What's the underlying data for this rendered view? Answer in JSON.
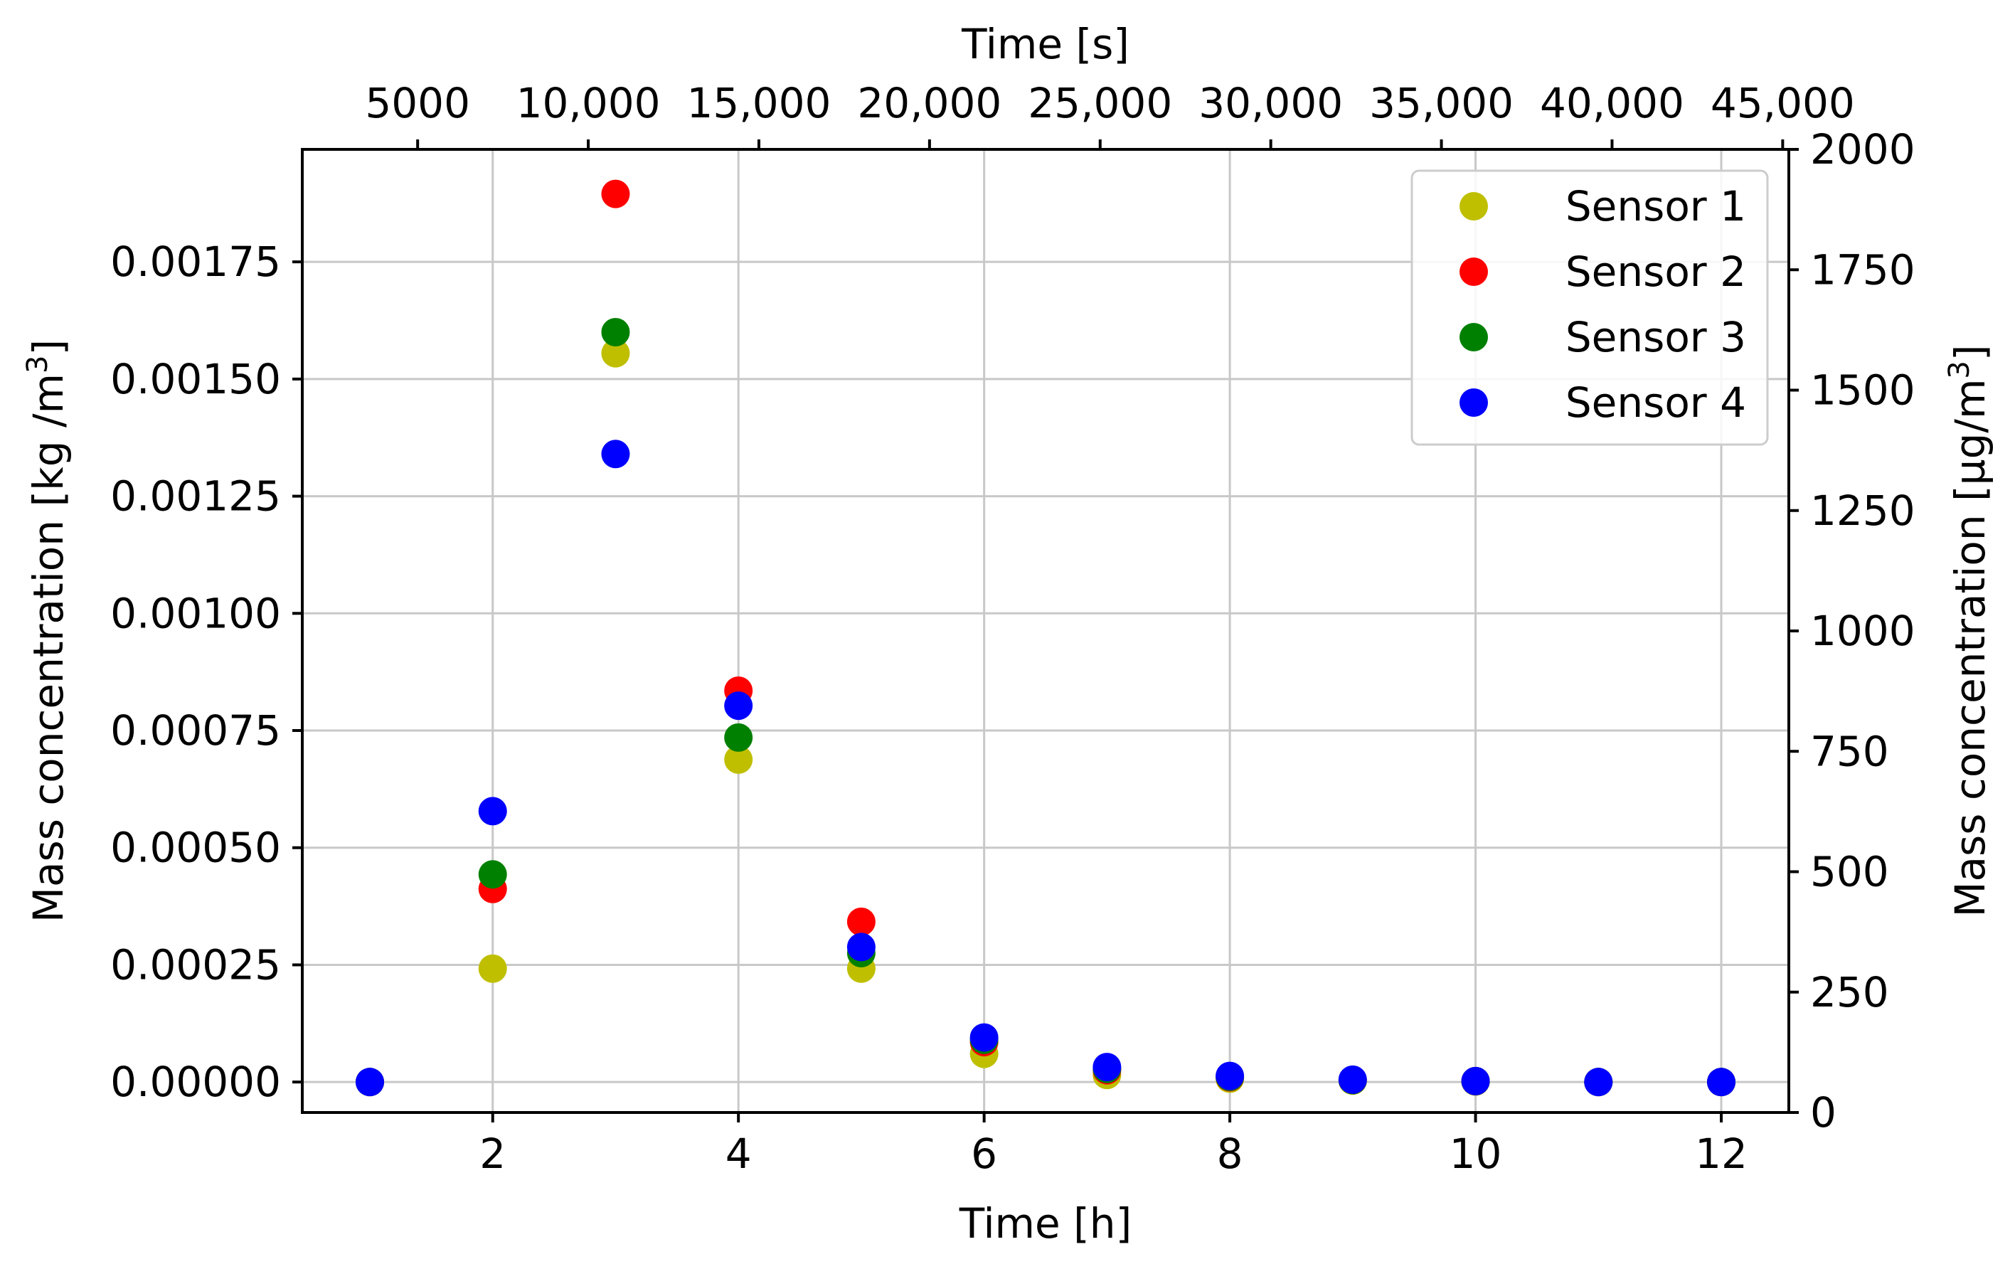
{
  "chart_data": {
    "type": "scatter",
    "xlabel": "Time [h]",
    "x2label": "Time [s]",
    "ylabel": "Mass concentration [kg /m",
    "ylabel_sup": "3",
    "ylabel_end": "]",
    "y2label": "Mass concentration [µg/m",
    "y2label_sup": "3",
    "y2label_end": "]",
    "xlim": [
      0.45,
      12.55
    ],
    "ylim": [
      -6.5e-05,
      0.00199
    ],
    "y2lim": [
      0,
      2000
    ],
    "x2lim": [
      1620,
      45180
    ],
    "xticks": [
      2,
      4,
      6,
      8,
      10,
      12
    ],
    "xtick_labels": [
      "2",
      "4",
      "6",
      "8",
      "10",
      "12"
    ],
    "yticks": [
      0,
      0.00025,
      0.0005,
      0.00075,
      0.001,
      0.00125,
      0.0015,
      0.00175
    ],
    "ytick_labels": [
      "0.00000",
      "0.00025",
      "0.00050",
      "0.00075",
      "0.00100",
      "0.00125",
      "0.00150",
      "0.00175"
    ],
    "y2ticks": [
      0,
      250,
      500,
      750,
      1000,
      1250,
      1500,
      1750,
      2000
    ],
    "y2tick_labels": [
      "0",
      "250",
      "500",
      "750",
      "1000",
      "1250",
      "1500",
      "1750",
      "2000"
    ],
    "x2ticks": [
      5000,
      10000,
      15000,
      20000,
      25000,
      30000,
      35000,
      40000,
      45000
    ],
    "x2tick_labels": [
      "5000",
      "10,000",
      "15,000",
      "20,000",
      "25,000",
      "30,000",
      "35,000",
      "40,000",
      "45,000"
    ],
    "grid": true,
    "legend_position": "top-right",
    "x": [
      1,
      2,
      3,
      4,
      5,
      6,
      7,
      8,
      9,
      10,
      11,
      12
    ],
    "series": [
      {
        "name": "Sensor 1",
        "color": "#bfbf00",
        "values": [
          0.0,
          0.000242,
          0.001555,
          0.000688,
          0.000242,
          6e-05,
          1.5e-05,
          7e-06,
          3e-06,
          1e-06,
          0.0,
          0.0
        ]
      },
      {
        "name": "Sensor 2",
        "color": "#ff0000",
        "values": [
          0.0,
          0.000412,
          0.001895,
          0.000835,
          0.000342,
          8.5e-05,
          2.5e-05,
          1e-05,
          4e-06,
          2e-06,
          0.0,
          0.0
        ]
      },
      {
        "name": "Sensor 3",
        "color": "#008000",
        "values": [
          0.0,
          0.000443,
          0.0016,
          0.000735,
          0.000275,
          9e-05,
          2.8e-05,
          1.1e-05,
          4e-06,
          2e-06,
          0.0,
          0.0
        ]
      },
      {
        "name": "Sensor 4",
        "color": "#0000ff",
        "values": [
          0.0,
          0.000578,
          0.00134,
          0.000803,
          0.000288,
          9.5e-05,
          3.2e-05,
          1.3e-05,
          5e-06,
          2e-06,
          0.0,
          0.0
        ]
      }
    ]
  }
}
